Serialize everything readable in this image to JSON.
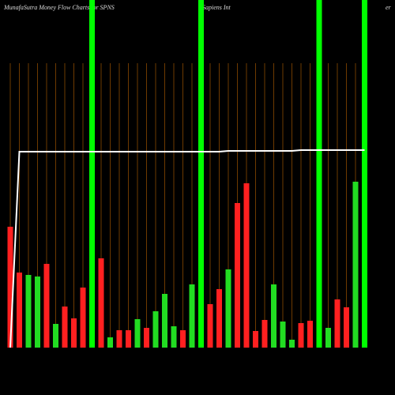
{
  "chart_data": {
    "type": "bar",
    "title": "MunafaSutra  Money Flow  Charts for SPNS",
    "subtitle": "Sapiens Int",
    "title_right": "er",
    "categories": [
      null,
      null,
      null,
      null,
      null,
      null,
      null,
      null,
      null,
      null,
      null,
      null,
      null,
      null,
      null,
      null,
      null,
      null,
      null,
      null,
      null,
      null,
      null,
      null,
      null,
      null,
      null,
      null,
      null,
      null,
      null,
      null,
      null,
      null,
      null,
      null,
      null,
      null,
      null,
      null
    ],
    "ylim": [
      0,
      360
    ],
    "series": [
      {
        "color": "#ff2020",
        "values": [
          153,
          95,
          92,
          90,
          106,
          30,
          52,
          37,
          76,
          null,
          113,
          13,
          22,
          22,
          36,
          25,
          46,
          68,
          27,
          22,
          80,
          null,
          55,
          74,
          99,
          183,
          208,
          21,
          35,
          80,
          33,
          10,
          31,
          34,
          null,
          25,
          61,
          51,
          210,
          null
        ],
        "colors": [
          "#ff2020",
          "#ff2020",
          "#22dd22",
          "#22dd22",
          "#ff2020",
          "#22dd22",
          "#ff2020",
          "#ff2020",
          "#ff2020",
          "#22dd22",
          "#ff2020",
          "#22dd22",
          "#ff2020",
          "#ff2020",
          "#22dd22",
          "#ff2020",
          "#22dd22",
          "#22dd22",
          "#22dd22",
          "#ff2020",
          "#22dd22",
          "#22dd22",
          "#ff2020",
          "#ff2020",
          "#22dd22",
          "#ff2020",
          "#ff2020",
          "#ff2020",
          "#ff2020",
          "#22dd22",
          "#22dd22",
          "#22dd22",
          "#ff2020",
          "#ff2020",
          "#22dd22",
          "#22dd22",
          "#ff2020",
          "#ff2020",
          "#22dd22",
          "#22dd22"
        ]
      },
      {
        "type": "line",
        "color": "#ffffff",
        "values": [
          0,
          248,
          248,
          248,
          248,
          248,
          248,
          248,
          248,
          248,
          248,
          248,
          248,
          248,
          248,
          248,
          248,
          248,
          248,
          248,
          248,
          248,
          248,
          248,
          249,
          249,
          249,
          249,
          249,
          249,
          249,
          249,
          250,
          250,
          250,
          250,
          250,
          250,
          250,
          250
        ]
      }
    ],
    "highlights": [
      9,
      21,
      34,
      39
    ],
    "highlight_color": "#00ff00",
    "grid_color": "#8a4a00"
  }
}
